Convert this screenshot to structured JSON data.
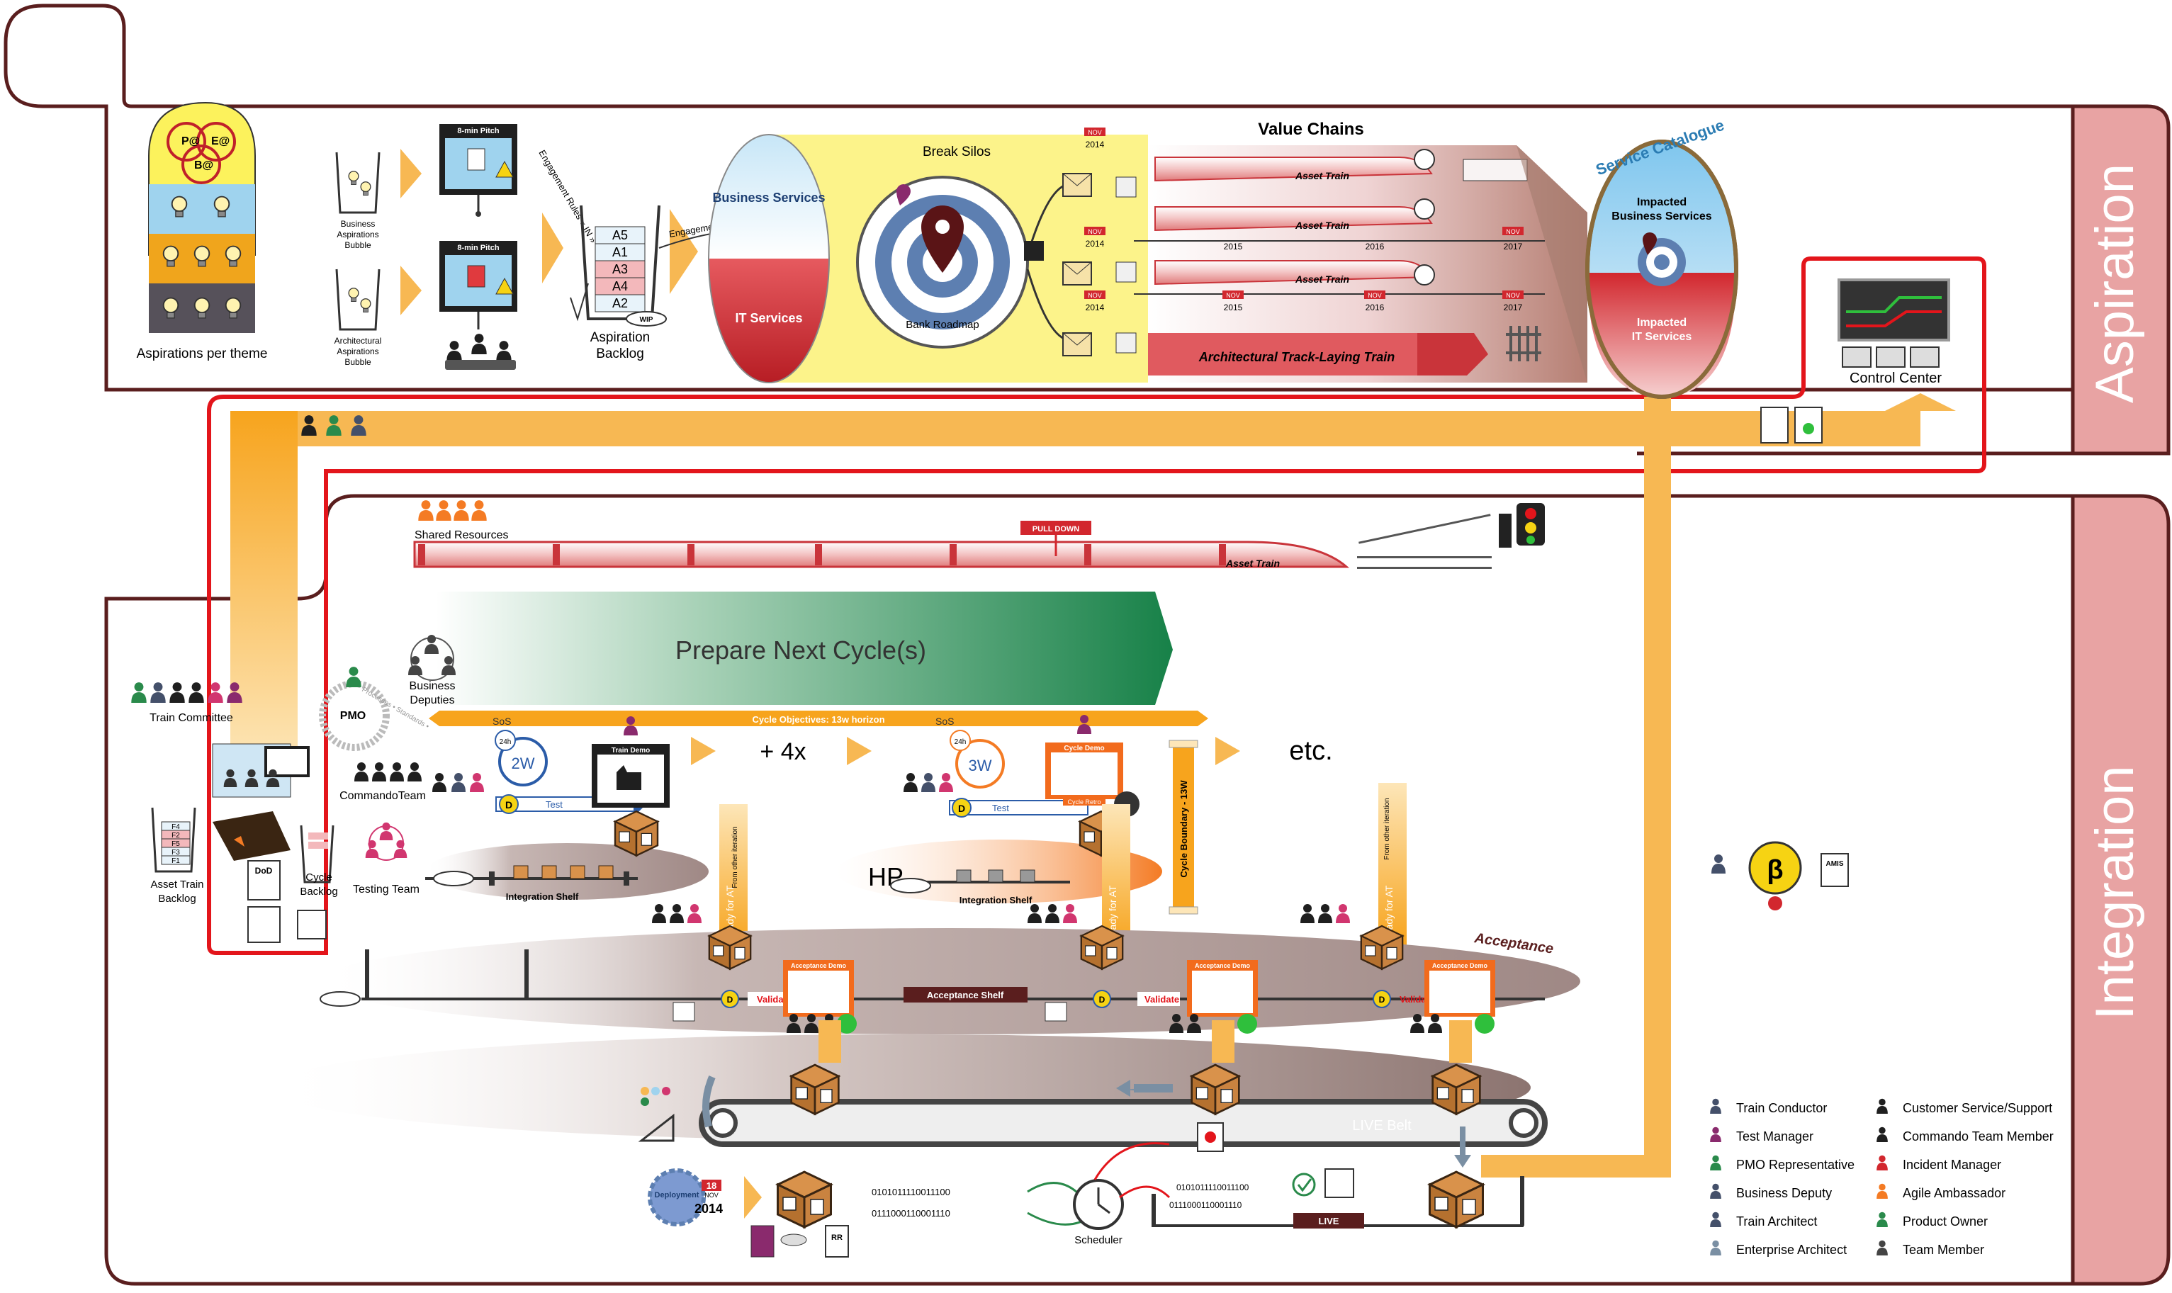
{
  "sections": {
    "aspiration": "Aspiration",
    "integration": "Integration"
  },
  "aspiration": {
    "aspirations_per_theme": "Aspirations per theme",
    "theme_bubble_labels": [
      "P@",
      "E@",
      "B@"
    ],
    "business_aspirations_bubble": [
      "Business",
      "Aspirations",
      "Bubble"
    ],
    "architectural_aspirations_bubble": [
      "Architectural",
      "Aspirations",
      "Bubble"
    ],
    "pitch_label": "8-min Pitch",
    "engagement_rules_in": "Engagement Rules « IN »",
    "engagement_rules_out": "Engagement Rules « OUT »",
    "backlog_items": [
      "A5",
      "A1",
      "A3",
      "A4",
      "A2"
    ],
    "aspiration_backlog": [
      "Aspiration",
      "Backlog"
    ],
    "wip": "WIP",
    "break_silos": "Break Silos",
    "business_services": "Business Services",
    "it_services": "IT Services",
    "bank_roadmap": "Bank Roadmap",
    "value_chains": "Value Chains",
    "nov": "NOV",
    "year_2014": "2014",
    "years": [
      "2015",
      "2016",
      "2017"
    ],
    "asset_train": "Asset Train",
    "architectural_track_laying_train": "Architectural Track-Laying Train",
    "service_catalogue": "Service Catalogue",
    "impacted_business_services": [
      "Impacted",
      "Business Services"
    ],
    "impacted_it_services": [
      "Impacted",
      "IT Services"
    ],
    "control_center": "Control Center"
  },
  "integration": {
    "shared_resources": "Shared Resources",
    "pull_down": "PULL DOWN",
    "asset_train": "Asset Train",
    "prepare_next_cycles": "Prepare Next Cycle(s)",
    "business_deputies": [
      "Business",
      "Deputies"
    ],
    "train_committee": "Train Committee",
    "pmo": "PMO",
    "pmo_ring": "Processes • Standards •",
    "sos": "SoS",
    "cycle_objectives": "Cycle Objectives: 13w horizon",
    "h24": "24h",
    "w2": "2W",
    "w3": "3W",
    "d": "D",
    "test": "Test",
    "train_demo": "Train Demo",
    "cycle_demo": "Cycle Demo",
    "cycle_retro": "Cycle Retro",
    "times_4x": "+ 4x",
    "etc": "etc.",
    "commando_team": "CommandoTeam",
    "testing_team": "Testing Team",
    "integration_shelf": "Integration Shelf",
    "hp": "HP",
    "from_other_iteration": "From other iteration",
    "ready_for_at": "Ready for AT",
    "cycle_boundary": "Cycle Boundary - 13W",
    "asset_train_backlog": [
      "Asset Train",
      "Backlog"
    ],
    "asset_backlog_items": [
      "F4",
      "F2",
      "F5",
      "F3",
      "F1"
    ],
    "cycle_backlog": [
      "Cycle",
      "Backlog"
    ],
    "dod": "DoD",
    "acceptance": "Acceptance",
    "acceptance_demo": "Acceptance Demo",
    "acceptance_shelf": "Acceptance Shelf",
    "validate": "Validate",
    "live_belt": "LIVE Belt",
    "live": "LIVE",
    "deployment": "Deployment",
    "deploy_day": "18",
    "deploy_month": "NOV",
    "deploy_year": "2014",
    "scheduler": "Scheduler",
    "rr": "RR",
    "amis": "AMIS",
    "beta": "β",
    "binary_1": "0101011110011100",
    "binary_2": "0111000110001110",
    "binary_3": "0101011110011100",
    "binary_4": "0111000110001110"
  },
  "legend": {
    "left": [
      "Train Conductor",
      "Test Manager",
      "PMO Representative",
      "Business Deputy",
      "Train Architect",
      "Enterprise Architect"
    ],
    "right": [
      "Customer Service/Support",
      "Commando Team Member",
      "Incident Manager",
      "Agile Ambassador",
      "Product Owner",
      "Team Member"
    ]
  },
  "colors": {
    "frame_border": "#5a1e1e",
    "section_band": "#e8a3a3",
    "red_outline": "#e3151b",
    "orange_flow": "#f7a41d",
    "green_arrow": "#2a8a4b",
    "train_red": "#c9343a",
    "acceptance_orange": "#f26b1d"
  }
}
